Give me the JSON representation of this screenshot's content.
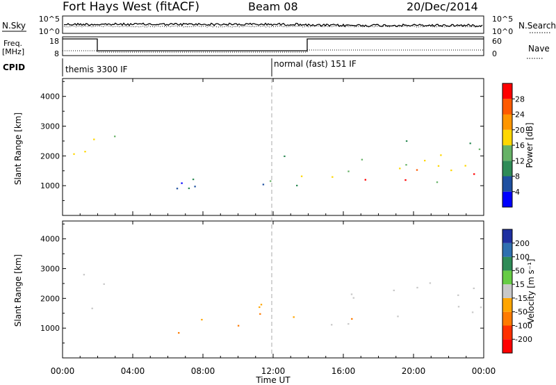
{
  "header": {
    "title": "Fort Hays West (fitACF)",
    "beam": "Beam 08",
    "date": "20/Dec/2014"
  },
  "panels": {
    "nsky_label": "N.Sky",
    "nsky_ticks": [
      "10^5",
      "10^0"
    ],
    "nsearch_label": "N.Search",
    "nsearch_ticks": [
      "10^5",
      "10^0"
    ],
    "freq_label": "Freq.",
    "freq_unit": "[MHz]",
    "freq_ticks": [
      "18",
      "8"
    ],
    "nave_label": "Nave",
    "nave_ticks": [
      "60",
      "0"
    ],
    "cpid_label": "CPID",
    "cpid_modes": [
      {
        "text": "themis 3300 IF",
        "start_h": 0
      },
      {
        "text": "normal (fast) 151 IF",
        "start_h": 12
      }
    ]
  },
  "chart_data": [
    {
      "type": "heatmap",
      "name": "power-panel",
      "ylabel": "Slant Range [km]",
      "yticks": [
        1000,
        2000,
        3000,
        4000
      ],
      "ylim": [
        0,
        4600
      ],
      "xlim_hours": [
        0,
        24
      ],
      "colorbar_label": "Power [dB]",
      "colorbar_ticks": [
        "28",
        "24",
        "20",
        "16",
        "12",
        "8",
        "4"
      ],
      "colorbar_colors": [
        "#ff0000",
        "#ff5a00",
        "#ff9600",
        "#ffd700",
        "#66b266",
        "#2e8b57",
        "#1e4fa0",
        "#0000ff"
      ],
      "regions": [
        {
          "t0": 0.3,
          "t1": 1.8,
          "r0": 1500,
          "r1": 3200,
          "level": 2
        },
        {
          "t0": 2.3,
          "t1": 3.0,
          "r0": 1800,
          "r1": 3000,
          "level": 5
        },
        {
          "t0": 6.0,
          "t1": 11.5,
          "r0": 300,
          "r1": 1500,
          "level": 6
        },
        {
          "t0": 11.0,
          "t1": 13.5,
          "r0": 700,
          "r1": 2100,
          "level": 4
        },
        {
          "t0": 13.2,
          "t1": 13.9,
          "r0": 800,
          "r1": 1500,
          "level": 2
        },
        {
          "t0": 14.6,
          "t1": 24.0,
          "r0": 1100,
          "r1": 2700,
          "level": 4
        },
        {
          "t0": 14.6,
          "t1": 24.0,
          "r0": 1200,
          "r1": 1600,
          "level": 1
        }
      ]
    },
    {
      "type": "heatmap",
      "name": "velocity-panel",
      "ylabel": "Slant Range [km]",
      "yticks": [
        1000,
        2000,
        3000,
        4000
      ],
      "ylim": [
        0,
        4600
      ],
      "xlim_hours": [
        0,
        24
      ],
      "xticks": [
        "00:00",
        "04:00",
        "08:00",
        "12:00",
        "16:00",
        "20:00",
        "00:00"
      ],
      "xlabel": "Time UT",
      "colorbar_label": "Velocity [m s⁻¹]",
      "colorbar_ticks": [
        "200",
        "100",
        "50",
        "15",
        "-15",
        "-50",
        "-100",
        "-200"
      ],
      "colorbar_colors": [
        "#1e2fa0",
        "#2e6fb0",
        "#2e8b57",
        "#66cc44",
        "#c8c8c8",
        "#ffa500",
        "#ff7a00",
        "#ff3000",
        "#ff0000"
      ],
      "regions": [
        {
          "t0": 0.3,
          "t1": 1.8,
          "r0": 1500,
          "r1": 3200,
          "kind": "gray"
        },
        {
          "t0": 2.3,
          "t1": 3.0,
          "r0": 1800,
          "r1": 3000,
          "kind": "gray"
        },
        {
          "t0": 6.0,
          "t1": 11.5,
          "r0": 300,
          "r1": 1500,
          "kind": "orange"
        },
        {
          "t0": 11.0,
          "t1": 13.5,
          "r0": 700,
          "r1": 2100,
          "kind": "orange"
        },
        {
          "t0": 14.6,
          "t1": 24.0,
          "r0": 1100,
          "r1": 2700,
          "kind": "gray"
        }
      ]
    }
  ]
}
